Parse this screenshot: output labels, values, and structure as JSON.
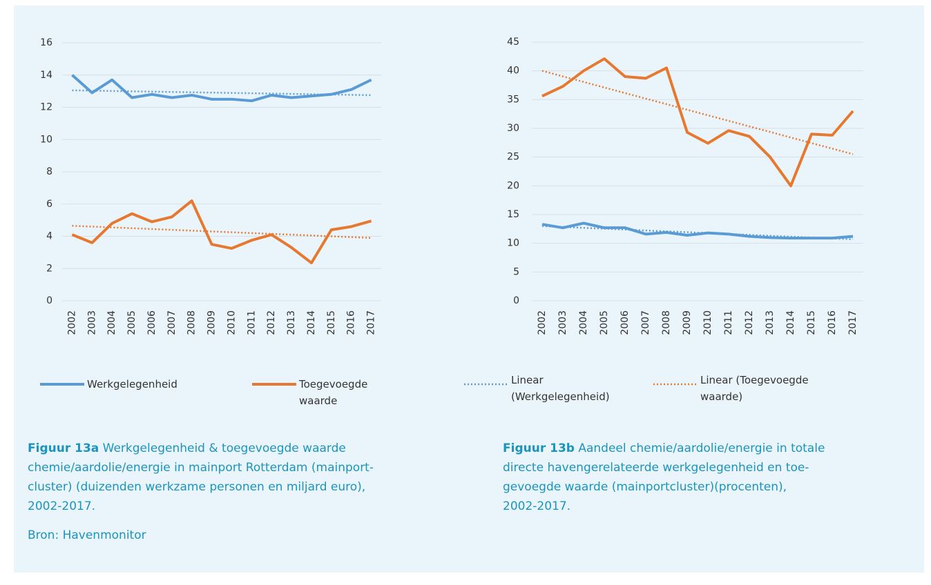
{
  "chart_data": [
    {
      "type": "line",
      "categories": [
        "2002",
        "2003",
        "2004",
        "2005",
        "2006",
        "2007",
        "2008",
        "2009",
        "2010",
        "2011",
        "2012",
        "2013",
        "2014",
        "2015",
        "2016",
        "2017"
      ],
      "ylim": [
        0,
        16
      ],
      "yticks": [
        0,
        2,
        4,
        6,
        8,
        10,
        12,
        14,
        16
      ],
      "grid": true,
      "series": [
        {
          "name": "Werkgelegenheid",
          "color": "#5b9bd5",
          "dash": false,
          "values": [
            14.0,
            12.9,
            13.7,
            12.6,
            12.8,
            12.6,
            12.75,
            12.5,
            12.5,
            12.4,
            12.75,
            12.6,
            12.7,
            12.8,
            13.1,
            13.7
          ]
        },
        {
          "name": "Toegevoegde waarde",
          "color": "#e6782f",
          "dash": false,
          "values": [
            4.1,
            3.6,
            4.8,
            5.4,
            4.9,
            5.2,
            6.2,
            3.5,
            3.25,
            3.75,
            4.1,
            3.3,
            2.35,
            4.4,
            4.6,
            4.95
          ]
        },
        {
          "name": "Linear (Werkgelegenheid)",
          "color": "#5b9bd5",
          "dash": true,
          "values": [
            13.05,
            13.03,
            13.01,
            12.99,
            12.97,
            12.95,
            12.93,
            12.91,
            12.89,
            12.87,
            12.85,
            12.83,
            12.81,
            12.79,
            12.77,
            12.75
          ]
        },
        {
          "name": "Linear (Toegevoegde waarde)",
          "color": "#e6782f",
          "dash": true,
          "values": [
            4.65,
            4.6,
            4.55,
            4.5,
            4.45,
            4.4,
            4.35,
            4.3,
            4.25,
            4.2,
            4.15,
            4.1,
            4.05,
            4.0,
            3.95,
            3.9
          ]
        }
      ]
    },
    {
      "type": "line",
      "categories": [
        "2002",
        "2003",
        "2004",
        "2005",
        "2006",
        "2007",
        "2008",
        "2009",
        "2010",
        "2011",
        "2012",
        "2013",
        "2014",
        "2015",
        "2016",
        "2017"
      ],
      "ylim": [
        0,
        45
      ],
      "yticks": [
        0,
        5,
        10,
        15,
        20,
        25,
        30,
        35,
        40,
        45
      ],
      "grid": true,
      "series": [
        {
          "name": "Werkgelegenheid",
          "color": "#5b9bd5",
          "dash": false,
          "values": [
            13.3,
            12.7,
            13.5,
            12.7,
            12.7,
            11.6,
            11.9,
            11.4,
            11.8,
            11.6,
            11.2,
            11.0,
            10.9,
            10.9,
            10.9,
            11.2
          ]
        },
        {
          "name": "Toegevoegde waarde",
          "color": "#e6782f",
          "dash": false,
          "values": [
            35.6,
            37.3,
            40.0,
            42.1,
            39.0,
            38.7,
            40.5,
            29.3,
            27.4,
            29.6,
            28.6,
            25.0,
            20.0,
            29.0,
            28.8,
            33.0
          ]
        },
        {
          "name": "Linear (Werkgelegenheid)",
          "color": "#5b9bd5",
          "dash": true,
          "values": [
            13.0,
            12.85,
            12.69,
            12.54,
            12.39,
            12.23,
            12.08,
            11.93,
            11.77,
            11.62,
            11.47,
            11.31,
            11.16,
            11.01,
            10.85,
            10.7
          ]
        },
        {
          "name": "Linear (Toegevoegde waarde)",
          "color": "#e6782f",
          "dash": true,
          "values": [
            40.0,
            39.03,
            38.07,
            37.1,
            36.13,
            35.17,
            34.2,
            33.23,
            32.27,
            31.3,
            30.33,
            29.37,
            28.4,
            27.43,
            26.47,
            25.5
          ]
        }
      ]
    }
  ],
  "captions": [
    {
      "label": "Figuur 13a",
      "lines": [
        " Werkgelegenheid & toegevoegde waarde",
        "chemie/aardolie/energie in mainport Rotterdam (mainport-",
        "cluster) (duizenden werkzame personen en miljard euro),",
        "2002-2017."
      ]
    },
    {
      "label": "Figuur 13b",
      "lines": [
        " Aandeel chemie/aardolie/energie in totale",
        "directe havengerelateerde werkgelegenheid en toe-",
        "gevoegde waarde (mainportcluster)(procenten),",
        "2002-2017."
      ]
    }
  ],
  "source": "Bron: Havenmonitor"
}
